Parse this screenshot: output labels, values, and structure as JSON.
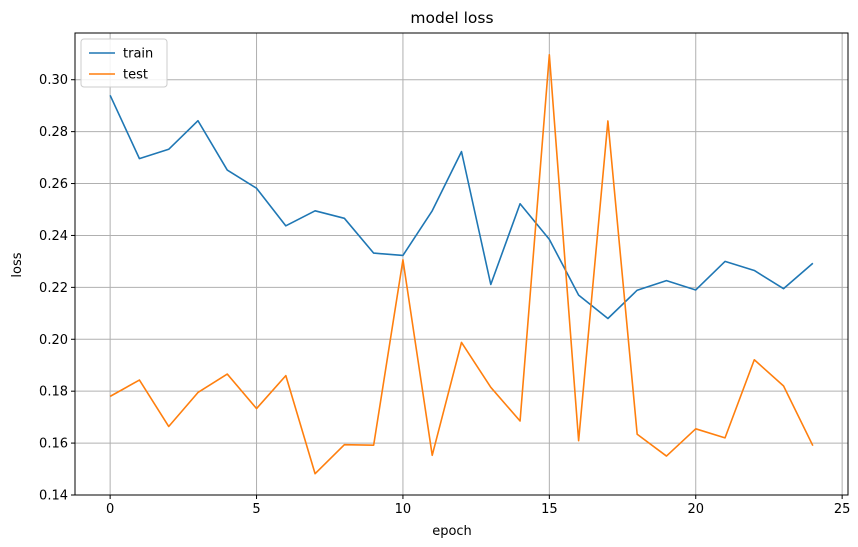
{
  "chart_data": {
    "type": "line",
    "title": "model loss",
    "xlabel": "epoch",
    "ylabel": "loss",
    "xlim": [
      -1.2,
      25.2
    ],
    "ylim": [
      0.14,
      0.318
    ],
    "xticks": [
      0,
      5,
      10,
      15,
      20,
      25
    ],
    "yticks": [
      0.14,
      0.16,
      0.18,
      0.2,
      0.22,
      0.24,
      0.26,
      0.28,
      0.3
    ],
    "ytick_labels": [
      "0.14",
      "0.16",
      "0.18",
      "0.20",
      "0.22",
      "0.24",
      "0.26",
      "0.28",
      "0.30"
    ],
    "grid": true,
    "legend_position": "upper left",
    "x": [
      0,
      1,
      2,
      3,
      4,
      5,
      6,
      7,
      8,
      9,
      10,
      11,
      12,
      13,
      14,
      15,
      16,
      17,
      18,
      19,
      20,
      21,
      22,
      23,
      24
    ],
    "series": [
      {
        "name": "train",
        "color": "#1f77b4",
        "values": [
          0.294,
          0.2696,
          0.2732,
          0.2842,
          0.2652,
          0.2582,
          0.2437,
          0.2495,
          0.2466,
          0.2332,
          0.2323,
          0.2495,
          0.2723,
          0.2211,
          0.2522,
          0.2385,
          0.217,
          0.208,
          0.2189,
          0.2226,
          0.219,
          0.23,
          0.2265,
          0.2195,
          0.2293
        ]
      },
      {
        "name": "test",
        "color": "#ff7f0e",
        "values": [
          0.178,
          0.1843,
          0.1664,
          0.1795,
          0.1866,
          0.1733,
          0.186,
          0.1482,
          0.1594,
          0.1592,
          0.2306,
          0.1553,
          0.1988,
          0.1815,
          0.1685,
          0.3096,
          0.1609,
          0.2841,
          0.1634,
          0.155,
          0.1655,
          0.162,
          0.1921,
          0.182,
          0.159
        ]
      }
    ]
  }
}
